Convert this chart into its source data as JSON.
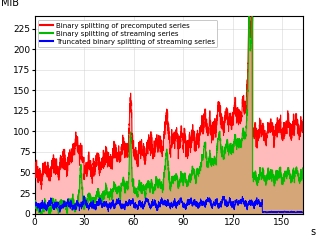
{
  "title": "",
  "ylabel": "MiB",
  "xlabel": "s",
  "xlim": [
    0,
    163
  ],
  "ylim": [
    0,
    240
  ],
  "yticks": [
    0,
    25,
    50,
    75,
    100,
    125,
    150,
    175,
    200,
    225
  ],
  "xticks": [
    0,
    30,
    60,
    90,
    120,
    150
  ],
  "legend": [
    "Binary splitting of precomputed series",
    "Binary splitting of streaming series",
    "Truncated binary splitting of streaming series"
  ],
  "colors": {
    "red": "#ff0000",
    "green": "#00bb00",
    "blue": "#0000ff",
    "red_fill": "#ffbbbb",
    "brown_fill": "#c8a060"
  },
  "figsize": [
    3.16,
    2.4
  ],
  "dpi": 100,
  "background": "#ffffff",
  "grid_color": "#cccccc"
}
